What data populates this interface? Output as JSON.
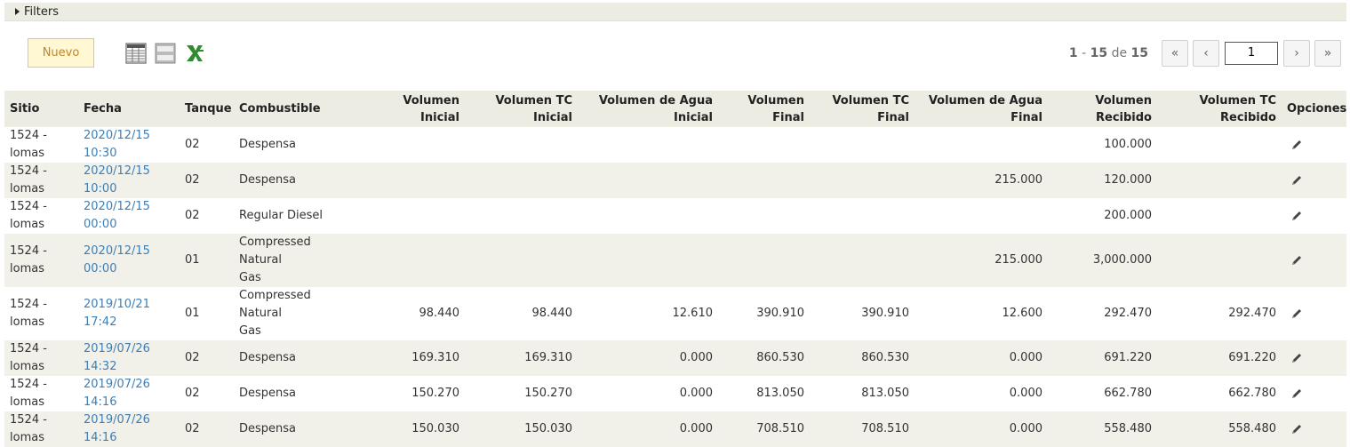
{
  "filters": {
    "label": "Filters"
  },
  "toolbar": {
    "new_label": "Nuevo",
    "icons": [
      "grid-view-icon",
      "list-view-icon",
      "excel-export-icon"
    ],
    "excel_color": "#2e8b2e"
  },
  "pager": {
    "range_from": "1",
    "range_to": "15",
    "of_label": "de",
    "total": "15",
    "first_glyph": "«",
    "prev_glyph": "‹",
    "next_glyph": "›",
    "last_glyph": "»",
    "page_value": "1"
  },
  "table": {
    "headers": {
      "sitio": "Sitio",
      "fecha": "Fecha",
      "tanque": "Tanque",
      "combustible": "Combustible",
      "vol_inicial_1": "Volumen",
      "vol_inicial_2": "Inicial",
      "voltc_inicial_1": "Volumen TC",
      "voltc_inicial_2": "Inicial",
      "agua_inicial_1": "Volumen de Agua",
      "agua_inicial_2": "Inicial",
      "vol_final_1": "Volumen",
      "vol_final_2": "Final",
      "voltc_final_1": "Volumen TC",
      "voltc_final_2": "Final",
      "agua_final_1": "Volumen de Agua",
      "agua_final_2": "Final",
      "vol_recibido_1": "Volumen",
      "vol_recibido_2": "Recibido",
      "voltc_recibido_1": "Volumen TC",
      "voltc_recibido_2": "Recibido",
      "opciones": "Opciones"
    },
    "rows": [
      {
        "sitio1": "1524 -",
        "sitio2": "lomas",
        "fecha1": "2020/12/15",
        "fecha2": "10:30",
        "tanque": "02",
        "comb1": "Despensa",
        "comb2": "",
        "vi": "",
        "vtci": "",
        "vai": "",
        "vf": "",
        "vtcf": "",
        "vaf": "",
        "vr": "100.000",
        "vtcr": ""
      },
      {
        "sitio1": "1524 -",
        "sitio2": "lomas",
        "fecha1": "2020/12/15",
        "fecha2": "10:00",
        "tanque": "02",
        "comb1": "Despensa",
        "comb2": "",
        "vi": "",
        "vtci": "",
        "vai": "",
        "vf": "",
        "vtcf": "",
        "vaf": "215.000",
        "vr": "120.000",
        "vtcr": ""
      },
      {
        "sitio1": "1524 -",
        "sitio2": "lomas",
        "fecha1": "2020/12/15",
        "fecha2": "00:00",
        "tanque": "02",
        "comb1": "Regular Diesel",
        "comb2": "",
        "vi": "",
        "vtci": "",
        "vai": "",
        "vf": "",
        "vtcf": "",
        "vaf": "",
        "vr": "200.000",
        "vtcr": ""
      },
      {
        "sitio1": "1524 -",
        "sitio2": "lomas",
        "fecha1": "2020/12/15",
        "fecha2": "00:00",
        "tanque": "01",
        "comb1": "Compressed Natural",
        "comb2": "Gas",
        "vi": "",
        "vtci": "",
        "vai": "",
        "vf": "",
        "vtcf": "",
        "vaf": "215.000",
        "vr": "3,000.000",
        "vtcr": ""
      },
      {
        "sitio1": "1524 -",
        "sitio2": "lomas",
        "fecha1": "2019/10/21",
        "fecha2": "17:42",
        "tanque": "01",
        "comb1": "Compressed Natural",
        "comb2": "Gas",
        "vi": "98.440",
        "vtci": "98.440",
        "vai": "12.610",
        "vf": "390.910",
        "vtcf": "390.910",
        "vaf": "12.600",
        "vr": "292.470",
        "vtcr": "292.470"
      },
      {
        "sitio1": "1524 -",
        "sitio2": "lomas",
        "fecha1": "2019/07/26",
        "fecha2": "14:32",
        "tanque": "02",
        "comb1": "Despensa",
        "comb2": "",
        "vi": "169.310",
        "vtci": "169.310",
        "vai": "0.000",
        "vf": "860.530",
        "vtcf": "860.530",
        "vaf": "0.000",
        "vr": "691.220",
        "vtcr": "691.220"
      },
      {
        "sitio1": "1524 -",
        "sitio2": "lomas",
        "fecha1": "2019/07/26",
        "fecha2": "14:16",
        "tanque": "02",
        "comb1": "Despensa",
        "comb2": "",
        "vi": "150.270",
        "vtci": "150.270",
        "vai": "0.000",
        "vf": "813.050",
        "vtcf": "813.050",
        "vaf": "0.000",
        "vr": "662.780",
        "vtcr": "662.780"
      },
      {
        "sitio1": "1524 -",
        "sitio2": "lomas",
        "fecha1": "2019/07/26",
        "fecha2": "14:16",
        "tanque": "02",
        "comb1": "Despensa",
        "comb2": "",
        "vi": "150.030",
        "vtci": "150.030",
        "vai": "0.000",
        "vf": "708.510",
        "vtcf": "708.510",
        "vaf": "0.000",
        "vr": "558.480",
        "vtcr": "558.480"
      }
    ]
  }
}
